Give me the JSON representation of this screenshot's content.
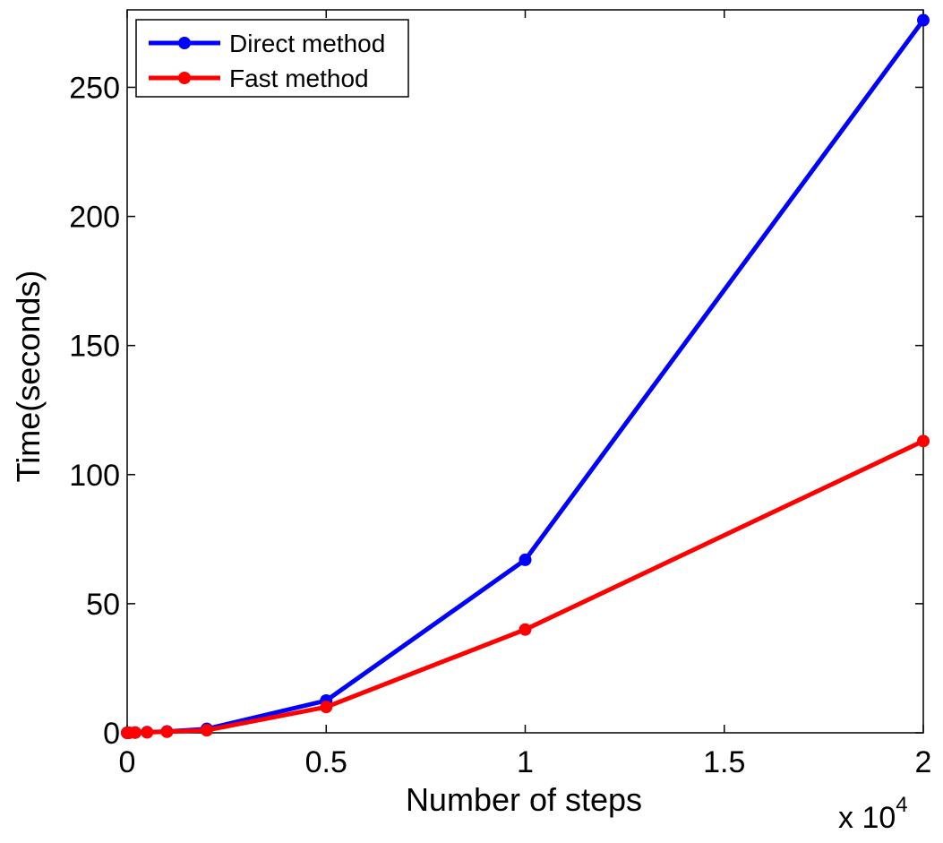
{
  "chart_data": {
    "type": "line",
    "xlabel": "Number of steps",
    "ylabel": "Time(seconds)",
    "x_multiplier": "x 10",
    "x_multiplier_exponent": "4",
    "xlim": [
      0,
      2
    ],
    "ylim": [
      0,
      280
    ],
    "xticks": [
      0,
      0.5,
      1,
      1.5,
      2
    ],
    "xtick_labels": [
      "0",
      "0.5",
      "1",
      "1.5",
      "2"
    ],
    "yticks": [
      0,
      50,
      100,
      150,
      200,
      250
    ],
    "ytick_labels": [
      "0",
      "50",
      "100",
      "150",
      "200",
      "250"
    ],
    "grid": false,
    "legend_position": "top-left",
    "series": [
      {
        "name": "Direct method",
        "color": "#0000ff",
        "x": [
          0.0,
          0.005,
          0.02,
          0.05,
          0.1,
          0.2,
          0.5,
          1.0,
          2.0
        ],
        "y": [
          0.0,
          0.02,
          0.1,
          0.25,
          0.5,
          1.5,
          12.5,
          67,
          276
        ]
      },
      {
        "name": "Fast method",
        "color": "#ff0000",
        "x": [
          0.0,
          0.005,
          0.02,
          0.05,
          0.1,
          0.2,
          0.5,
          1.0,
          2.0
        ],
        "y": [
          0.0,
          0.02,
          0.08,
          0.2,
          0.4,
          1.0,
          10,
          40,
          113
        ]
      }
    ]
  }
}
